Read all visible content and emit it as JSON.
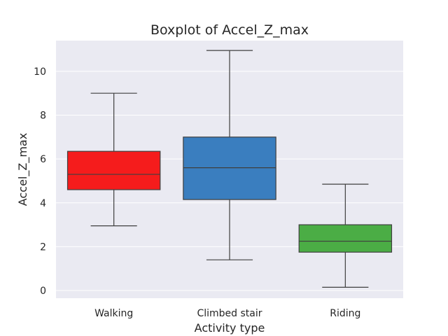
{
  "chart_data": {
    "type": "box",
    "title": "Boxplot of Accel_Z_max",
    "xlabel": "Activity type",
    "ylabel": "Accel_Z_max",
    "ylim": [
      -0.35,
      11.4
    ],
    "yticks": [
      0,
      2,
      4,
      6,
      8,
      10
    ],
    "grid": true,
    "legend": "none",
    "categories": [
      "Walking",
      "Climbed stair",
      "Riding"
    ],
    "series": [
      {
        "category": "Walking",
        "min": 2.95,
        "q1": 4.6,
        "median": 5.3,
        "q3": 6.35,
        "max": 9.0,
        "color": "#f51c1c"
      },
      {
        "category": "Climbed stair",
        "min": 1.4,
        "q1": 4.15,
        "median": 5.6,
        "q3": 7.0,
        "max": 10.95,
        "color": "#3a7ebf"
      },
      {
        "category": "Riding",
        "min": 0.15,
        "q1": 1.75,
        "median": 2.25,
        "q3": 3.0,
        "max": 4.85,
        "color": "#4bad45"
      }
    ]
  }
}
